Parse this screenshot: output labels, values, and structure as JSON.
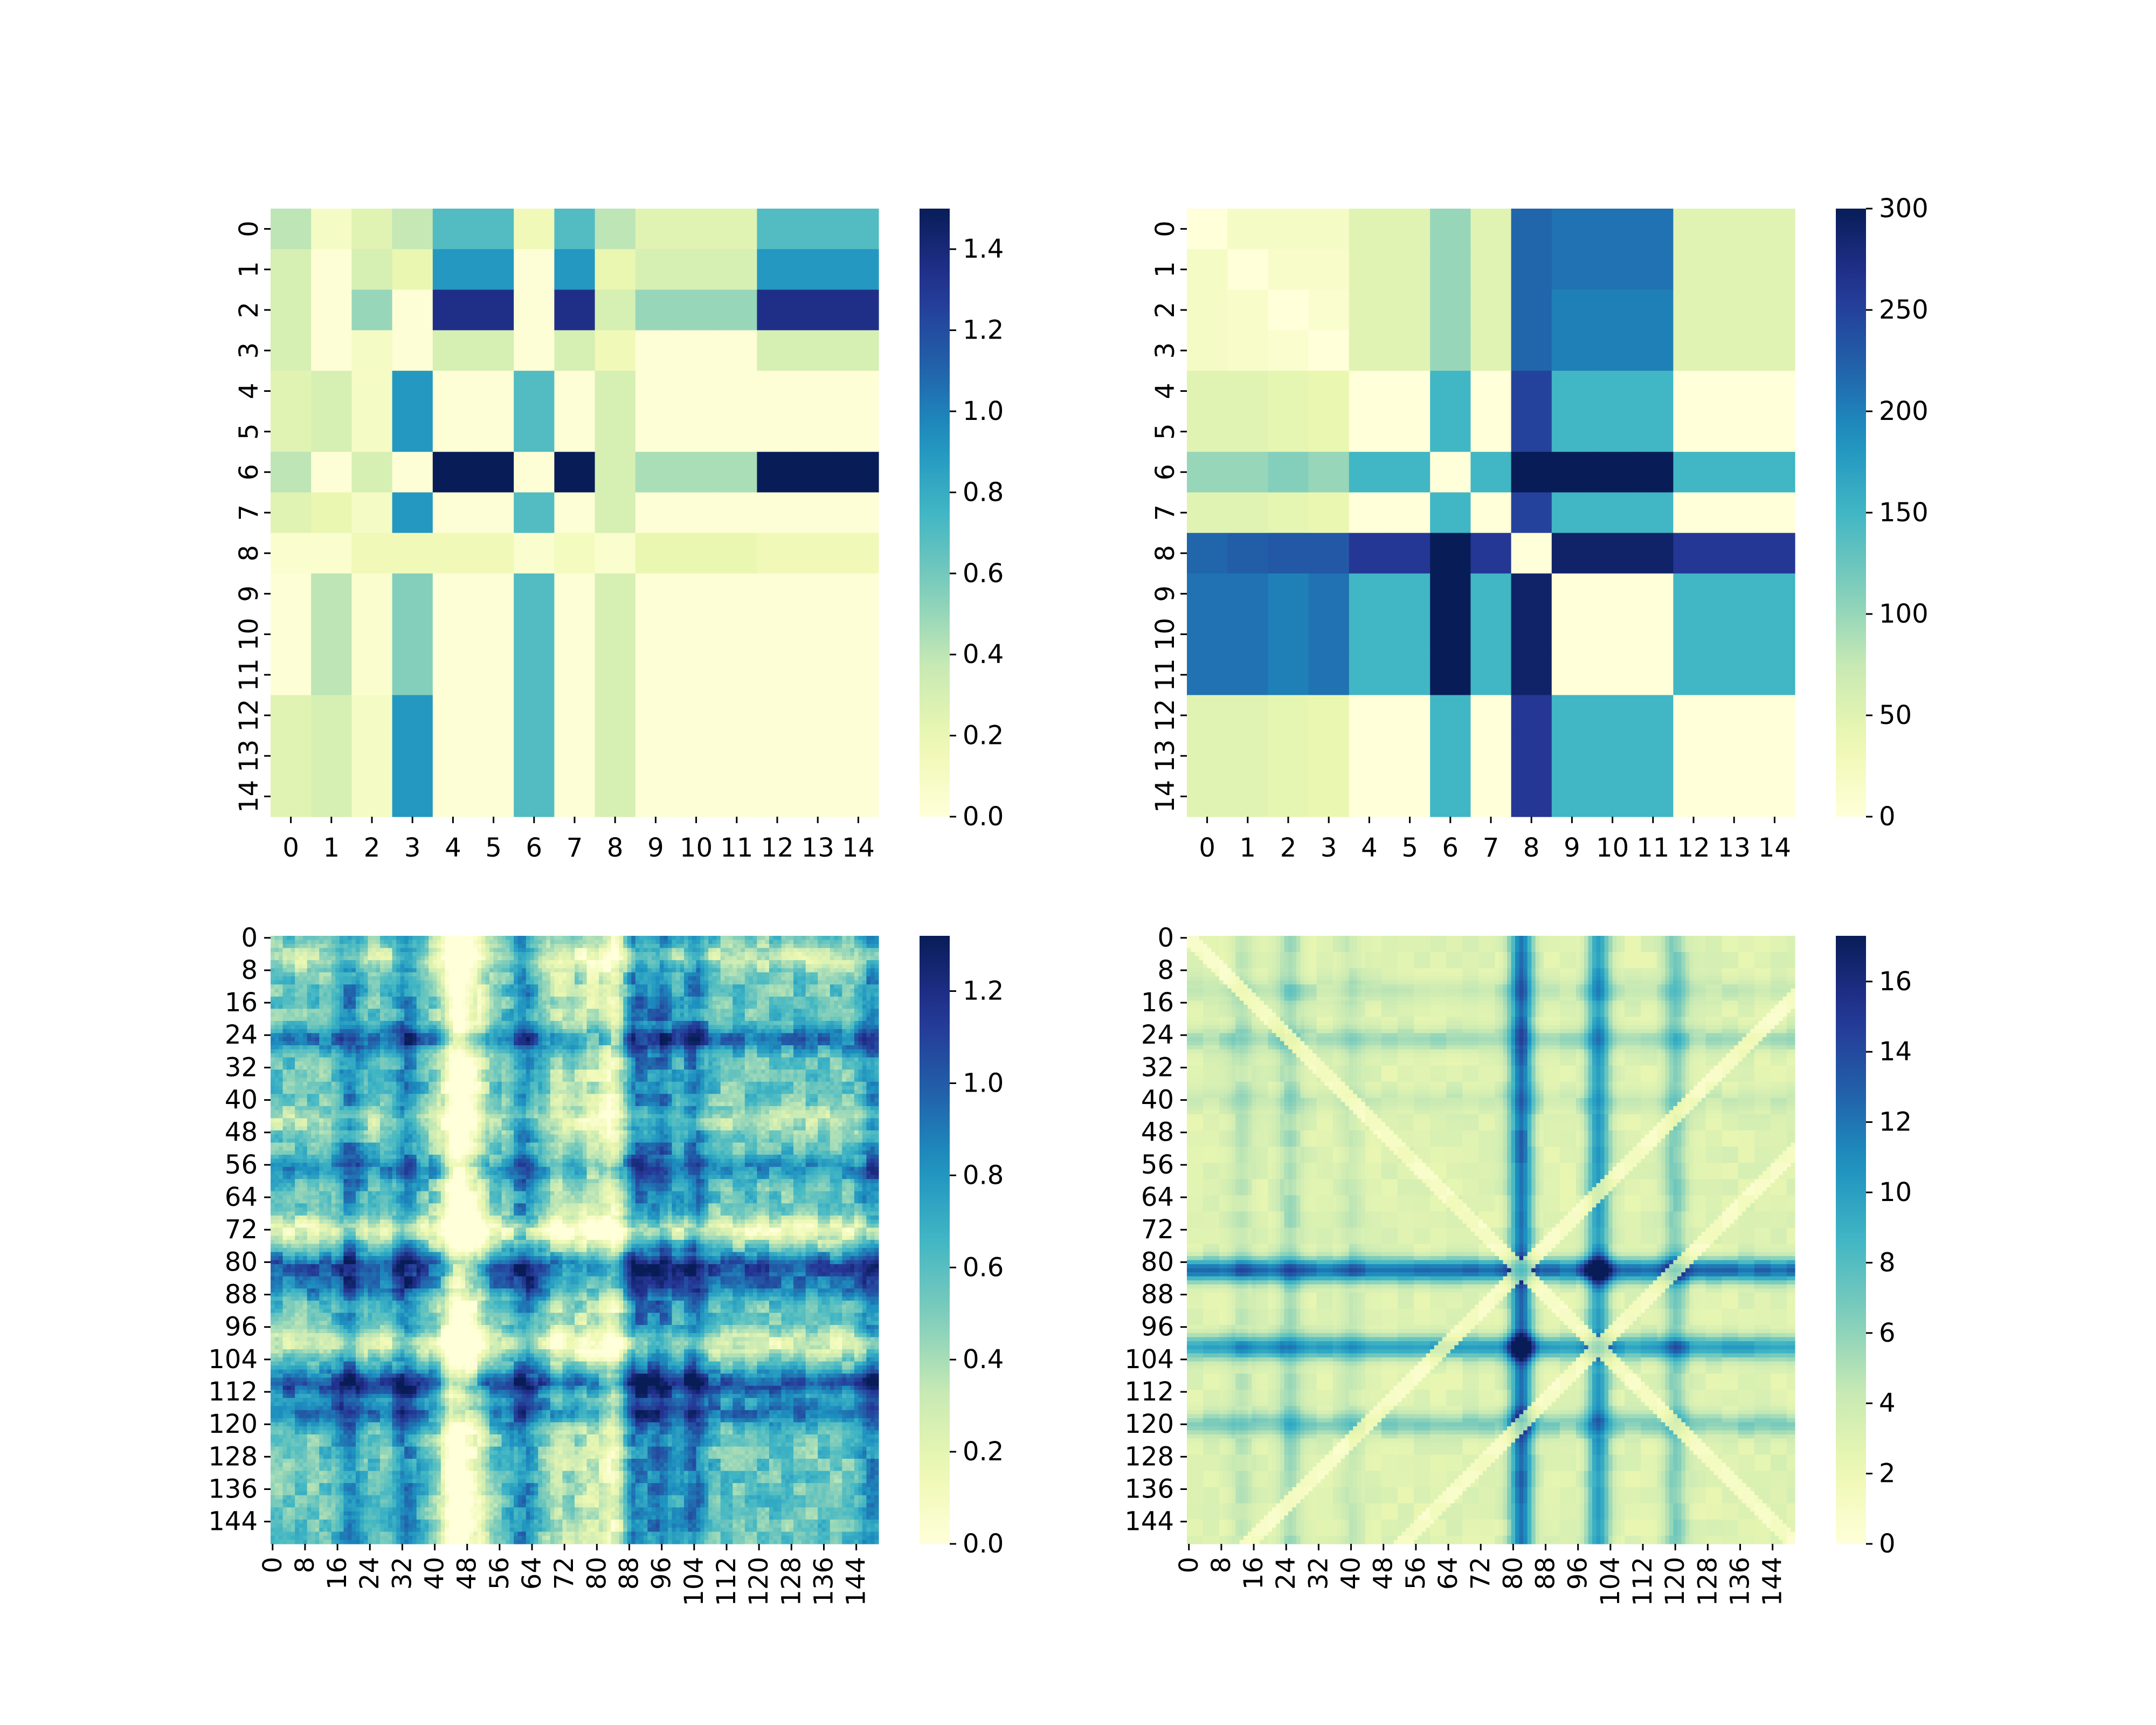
{
  "colormap": {
    "name": "YlGnBu",
    "stops": [
      "#ffffd9",
      "#edf8b1",
      "#c7e9b4",
      "#7fcdbb",
      "#41b6c4",
      "#1d91c0",
      "#225ea8",
      "#253494",
      "#081d58"
    ]
  },
  "chart_data": [
    {
      "type": "heatmap",
      "panel": "top-left",
      "size": 15,
      "tick_labels": [
        "0",
        "1",
        "2",
        "3",
        "4",
        "5",
        "6",
        "7",
        "8",
        "9",
        "10",
        "11",
        "12",
        "13",
        "14"
      ],
      "colorbar": {
        "vmin": 0,
        "vmax": 1.5,
        "ticks": [
          "0.0",
          "0.2",
          "0.4",
          "0.6",
          "0.8",
          "1.0",
          "1.2",
          "1.4"
        ],
        "tick_values": [
          0,
          0.2,
          0.4,
          0.6,
          0.8,
          1.0,
          1.2,
          1.4
        ]
      },
      "matrix": [
        [
          0.4,
          0.1,
          0.25,
          0.38,
          0.7,
          0.7,
          0.15,
          0.7,
          0.4,
          0.25,
          0.25,
          0.25,
          0.7,
          0.7,
          0.7
        ],
        [
          0.3,
          0.02,
          0.3,
          0.2,
          0.9,
          0.9,
          0.02,
          0.9,
          0.2,
          0.3,
          0.3,
          0.3,
          0.9,
          0.9,
          0.9
        ],
        [
          0.3,
          0.02,
          0.5,
          0.02,
          1.35,
          1.35,
          0.02,
          1.35,
          0.3,
          0.5,
          0.5,
          0.5,
          1.35,
          1.35,
          1.35
        ],
        [
          0.3,
          0.02,
          0.1,
          0.02,
          0.3,
          0.3,
          0.02,
          0.3,
          0.15,
          0.02,
          0.02,
          0.02,
          0.3,
          0.3,
          0.3
        ],
        [
          0.25,
          0.3,
          0.1,
          0.9,
          0.02,
          0.02,
          0.7,
          0.02,
          0.3,
          0.02,
          0.02,
          0.02,
          0.02,
          0.02,
          0.02
        ],
        [
          0.25,
          0.3,
          0.1,
          0.9,
          0.02,
          0.02,
          0.7,
          0.02,
          0.3,
          0.02,
          0.02,
          0.02,
          0.02,
          0.02,
          0.02
        ],
        [
          0.4,
          0.02,
          0.3,
          0.02,
          1.5,
          1.5,
          0.02,
          1.5,
          0.3,
          0.45,
          0.45,
          0.45,
          1.5,
          1.5,
          1.5
        ],
        [
          0.25,
          0.2,
          0.1,
          0.9,
          0.02,
          0.02,
          0.7,
          0.02,
          0.3,
          0.02,
          0.02,
          0.02,
          0.02,
          0.02,
          0.02
        ],
        [
          0.05,
          0.05,
          0.15,
          0.15,
          0.15,
          0.15,
          0.05,
          0.12,
          0.05,
          0.2,
          0.2,
          0.2,
          0.15,
          0.15,
          0.15
        ],
        [
          0.02,
          0.4,
          0.05,
          0.55,
          0.02,
          0.02,
          0.7,
          0.02,
          0.3,
          0.02,
          0.02,
          0.02,
          0.02,
          0.02,
          0.02
        ],
        [
          0.02,
          0.4,
          0.05,
          0.55,
          0.02,
          0.02,
          0.7,
          0.02,
          0.3,
          0.02,
          0.02,
          0.02,
          0.02,
          0.02,
          0.02
        ],
        [
          0.02,
          0.4,
          0.05,
          0.55,
          0.02,
          0.02,
          0.7,
          0.02,
          0.3,
          0.02,
          0.02,
          0.02,
          0.02,
          0.02,
          0.02
        ],
        [
          0.25,
          0.3,
          0.1,
          0.9,
          0.02,
          0.02,
          0.7,
          0.02,
          0.3,
          0.02,
          0.02,
          0.02,
          0.02,
          0.02,
          0.02
        ],
        [
          0.25,
          0.3,
          0.1,
          0.9,
          0.02,
          0.02,
          0.7,
          0.02,
          0.3,
          0.02,
          0.02,
          0.02,
          0.02,
          0.02,
          0.02
        ],
        [
          0.25,
          0.3,
          0.1,
          0.9,
          0.02,
          0.02,
          0.7,
          0.02,
          0.3,
          0.02,
          0.02,
          0.02,
          0.02,
          0.02,
          0.02
        ]
      ]
    },
    {
      "type": "heatmap",
      "panel": "top-right",
      "size": 15,
      "tick_labels": [
        "0",
        "1",
        "2",
        "3",
        "4",
        "5",
        "6",
        "7",
        "8",
        "9",
        "10",
        "11",
        "12",
        "13",
        "14"
      ],
      "colorbar": {
        "vmin": 0,
        "vmax": 300,
        "ticks": [
          "0",
          "50",
          "100",
          "150",
          "200",
          "250",
          "300"
        ],
        "tick_values": [
          0,
          50,
          100,
          150,
          200,
          250,
          300
        ]
      },
      "matrix": [
        [
          0,
          20,
          20,
          20,
          50,
          50,
          100,
          50,
          220,
          210,
          210,
          210,
          50,
          50,
          50
        ],
        [
          20,
          0,
          15,
          15,
          50,
          50,
          100,
          50,
          220,
          210,
          210,
          210,
          50,
          50,
          50
        ],
        [
          20,
          15,
          0,
          10,
          50,
          50,
          100,
          50,
          220,
          200,
          200,
          200,
          50,
          50,
          50
        ],
        [
          20,
          15,
          10,
          0,
          50,
          50,
          100,
          50,
          220,
          200,
          200,
          200,
          50,
          50,
          50
        ],
        [
          50,
          50,
          45,
          40,
          0,
          0,
          150,
          0,
          250,
          150,
          150,
          150,
          0,
          0,
          0
        ],
        [
          50,
          50,
          45,
          40,
          0,
          0,
          150,
          0,
          250,
          150,
          150,
          150,
          0,
          0,
          0
        ],
        [
          100,
          100,
          110,
          100,
          150,
          150,
          0,
          150,
          300,
          300,
          300,
          300,
          150,
          150,
          150
        ],
        [
          50,
          50,
          45,
          40,
          0,
          0,
          150,
          0,
          250,
          150,
          150,
          150,
          0,
          0,
          0
        ],
        [
          220,
          225,
          230,
          230,
          260,
          260,
          300,
          260,
          0,
          290,
          290,
          290,
          260,
          260,
          260
        ],
        [
          210,
          210,
          200,
          210,
          150,
          150,
          300,
          150,
          290,
          0,
          0,
          0,
          150,
          150,
          150
        ],
        [
          210,
          210,
          200,
          210,
          150,
          150,
          300,
          150,
          290,
          0,
          0,
          0,
          150,
          150,
          150
        ],
        [
          210,
          210,
          200,
          210,
          150,
          150,
          300,
          150,
          290,
          0,
          0,
          0,
          150,
          150,
          150
        ],
        [
          50,
          50,
          45,
          40,
          0,
          0,
          150,
          0,
          260,
          150,
          150,
          150,
          0,
          0,
          0
        ],
        [
          50,
          50,
          45,
          40,
          0,
          0,
          150,
          0,
          260,
          150,
          150,
          150,
          0,
          0,
          0
        ],
        [
          50,
          50,
          45,
          40,
          0,
          0,
          150,
          0,
          260,
          150,
          150,
          150,
          0,
          0,
          0
        ]
      ]
    },
    {
      "type": "heatmap",
      "panel": "bottom-left",
      "size": 150,
      "tick_labels": [
        "0",
        "8",
        "16",
        "24",
        "32",
        "40",
        "48",
        "56",
        "64",
        "72",
        "80",
        "88",
        "96",
        "104",
        "112",
        "120",
        "128",
        "136",
        "144"
      ],
      "colorbar": {
        "vmin": 0,
        "vmax": 1.32,
        "ticks": [
          "0.0",
          "0.2",
          "0.4",
          "0.6",
          "0.8",
          "1.0",
          "1.2"
        ],
        "tick_values": [
          0,
          0.2,
          0.4,
          0.6,
          0.8,
          1.0,
          1.2
        ]
      },
      "pattern": {
        "baseline": 0.55,
        "dark_rows": [
          [
            25,
            0.35
          ],
          [
            81,
            0.45
          ],
          [
            86,
            0.3
          ],
          [
            110,
            0.5
          ],
          [
            117,
            0.35
          ],
          [
            57,
            0.25
          ]
        ],
        "light_rows": [
          [
            72,
            0.4
          ],
          [
            100,
            0.35
          ],
          [
            5,
            0.25
          ],
          [
            45,
            0.2
          ]
        ],
        "dark_cols": [
          [
            19,
            0.3
          ],
          [
            33,
            0.3
          ],
          [
            62,
            0.3
          ],
          [
            90,
            0.35
          ],
          [
            96,
            0.35
          ],
          [
            104,
            0.35
          ],
          [
            148,
            0.3
          ]
        ],
        "light_cols": [
          [
            46,
            0.45
          ],
          [
            44,
            0.3
          ],
          [
            50,
            0.35
          ],
          [
            84,
            0.4
          ],
          [
            78,
            0.25
          ],
          [
            71,
            0.2
          ]
        ]
      }
    },
    {
      "type": "heatmap",
      "panel": "bottom-right",
      "size": 150,
      "tick_labels": [
        "0",
        "8",
        "16",
        "24",
        "32",
        "40",
        "48",
        "56",
        "64",
        "72",
        "80",
        "88",
        "96",
        "104",
        "112",
        "120",
        "128",
        "136",
        "144"
      ],
      "colorbar": {
        "vmin": 0,
        "vmax": 17.3,
        "ticks": [
          "0",
          "2",
          "4",
          "6",
          "8",
          "10",
          "12",
          "14",
          "16"
        ],
        "tick_values": [
          0,
          2,
          4,
          6,
          8,
          10,
          12,
          14,
          16
        ]
      },
      "pattern": {
        "baseline": 3.0,
        "cross_centers": [
          82,
          101
        ],
        "lines": [
          [
            82,
            9.5
          ],
          [
            101,
            7.0
          ],
          [
            120,
            3.5
          ],
          [
            25,
            2.5
          ],
          [
            13,
            1.5
          ],
          [
            40,
            1.2
          ]
        ],
        "hotspots": [
          [
            101,
            82,
            16.5
          ],
          [
            82,
            101,
            16.0
          ],
          [
            82,
            120,
            13.5
          ],
          [
            120,
            82,
            13.0
          ]
        ]
      }
    }
  ]
}
